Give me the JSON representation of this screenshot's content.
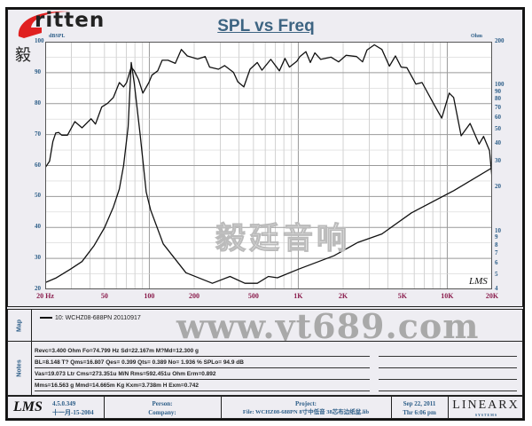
{
  "logo": {
    "word": "ritten",
    "chinese": "毅 廷 音 响"
  },
  "title": "SPL vs Freq",
  "watermarks": {
    "chinese": "毅廷音响",
    "url": "www.yt689.com"
  },
  "lms_mark": "LMS",
  "chart_data": {
    "type": "line",
    "title": "SPL vs Freq",
    "x_scale": "log",
    "xlim": [
      20,
      20000
    ],
    "x_ticks": [
      {
        "value": 20,
        "label": "20  Hz"
      },
      {
        "value": 50,
        "label": "50"
      },
      {
        "value": 100,
        "label": "100"
      },
      {
        "value": 200,
        "label": "200"
      },
      {
        "value": 500,
        "label": "500"
      },
      {
        "value": 1000,
        "label": "1K"
      },
      {
        "value": 2000,
        "label": "2K"
      },
      {
        "value": 5000,
        "label": "5K"
      },
      {
        "value": 10000,
        "label": "10K"
      },
      {
        "value": 20000,
        "label": "20K"
      }
    ],
    "y_left": {
      "unit": "dBSPL",
      "ylim": [
        20,
        100
      ],
      "ticks": [
        20,
        30,
        40,
        50,
        60,
        70,
        80,
        90,
        100
      ]
    },
    "y_right": {
      "unit": "Ohm",
      "scale": "log",
      "ylim": [
        4,
        200
      ],
      "ticks": [
        4,
        5,
        6,
        7,
        8,
        9,
        10,
        20,
        30,
        40,
        50,
        60,
        70,
        80,
        90,
        100,
        200
      ]
    },
    "grid": true,
    "series": [
      {
        "axis": "left",
        "points": [
          [
            20,
            59.3
          ],
          [
            21.4,
            61.4
          ],
          [
            22.5,
            67.7
          ],
          [
            23.5,
            70.5
          ],
          [
            24.6,
            70.7
          ],
          [
            25.8,
            69.8
          ],
          [
            28.2,
            69.8
          ],
          [
            31.6,
            74.2
          ],
          [
            35.3,
            72.2
          ],
          [
            40.6,
            75.1
          ],
          [
            43.5,
            73.4
          ],
          [
            47.9,
            78.9
          ],
          [
            52.4,
            80.1
          ],
          [
            57.4,
            82.0
          ],
          [
            62.9,
            86.8
          ],
          [
            67.2,
            85.4
          ],
          [
            70.4,
            86.8
          ],
          [
            75.6,
            91.8
          ],
          [
            79.2,
            90.6
          ],
          [
            84.6,
            87.8
          ],
          [
            90.5,
            83.4
          ],
          [
            99.3,
            86.8
          ],
          [
            104,
            89.2
          ],
          [
            113.9,
            90.6
          ],
          [
            122,
            94.0
          ],
          [
            133.4,
            94.0
          ],
          [
            149.4,
            93.0
          ],
          [
            164,
            97.5
          ],
          [
            179.8,
            95.4
          ],
          [
            211,
            94.4
          ],
          [
            237,
            95.2
          ],
          [
            254,
            91.8
          ],
          [
            291,
            91.1
          ],
          [
            320,
            92.3
          ],
          [
            367,
            90.1
          ],
          [
            393,
            87.0
          ],
          [
            431,
            85.4
          ],
          [
            474,
            91.1
          ],
          [
            531,
            93.3
          ],
          [
            570,
            90.8
          ],
          [
            654,
            94.3
          ],
          [
            747,
            90.6
          ],
          [
            814,
            94.6
          ],
          [
            872,
            91.8
          ],
          [
            978,
            93.7
          ],
          [
            1024,
            95.2
          ],
          [
            1124,
            96.8
          ],
          [
            1204,
            93.3
          ],
          [
            1292,
            96.4
          ],
          [
            1413,
            94.3
          ],
          [
            1659,
            95.0
          ],
          [
            1864,
            93.5
          ],
          [
            2094,
            95.6
          ],
          [
            2460,
            95.2
          ],
          [
            2700,
            93.5
          ],
          [
            2890,
            97.3
          ],
          [
            3240,
            99.0
          ],
          [
            3640,
            97.5
          ],
          [
            4090,
            92.1
          ],
          [
            4490,
            95.4
          ],
          [
            4900,
            91.8
          ],
          [
            5360,
            91.6
          ],
          [
            6160,
            86.3
          ],
          [
            6770,
            86.8
          ],
          [
            8170,
            79.6
          ],
          [
            9180,
            75.3
          ],
          [
            10300,
            83.4
          ],
          [
            11030,
            82.0
          ],
          [
            12390,
            69.6
          ],
          [
            14230,
            73.6
          ],
          [
            16350,
            66.9
          ],
          [
            17530,
            69.4
          ],
          [
            19230,
            64.8
          ],
          [
            20000,
            55.7
          ]
        ]
      },
      {
        "axis": "right",
        "points": [
          [
            20,
            4.45
          ],
          [
            23.5,
            4.77
          ],
          [
            29.5,
            5.5
          ],
          [
            35.3,
            6.2
          ],
          [
            42.6,
            8.0
          ],
          [
            50,
            10.6
          ],
          [
            57.4,
            14.7
          ],
          [
            62.9,
            19.5
          ],
          [
            67.2,
            28.3
          ],
          [
            72,
            52.0
          ],
          [
            75.6,
            144
          ],
          [
            79.2,
            104
          ],
          [
            86.9,
            45.3
          ],
          [
            95.3,
            18.6
          ],
          [
            102,
            14.0
          ],
          [
            124,
            8.2
          ],
          [
            176,
            5.2
          ],
          [
            265,
            4.4
          ],
          [
            348,
            4.9
          ],
          [
            438,
            4.4
          ],
          [
            531,
            4.4
          ],
          [
            630,
            4.9
          ],
          [
            724,
            4.8
          ],
          [
            1003,
            5.5
          ],
          [
            1734,
            6.8
          ],
          [
            2516,
            8.4
          ],
          [
            3640,
            9.6
          ],
          [
            5750,
            13.4
          ],
          [
            11030,
            19.0
          ],
          [
            20000,
            27.3
          ]
        ]
      }
    ]
  },
  "map": {
    "label": "Map",
    "legend": "10: WCHZ08-688PN 20110917"
  },
  "notes": {
    "label": "Notes",
    "lines": [
      "Revc=3.400 Ohm  Fo=74.799 Hz  Sd=22.167m M?Md=12.300 g",
      "BL=8.148 T?  Qms=16.807  Qes= 0.399  Qts= 0.389  No= 1.936 %  SPLo= 94.9 dB",
      "Vas=19.073 Ltr  Cms=273.351u M/N  Rms=592.451u Ohm  Erm=0.892",
      "Mms=16.563 g  Mmd=14.665m Kg  Kxm=3.738m H  Exm=0.742"
    ]
  },
  "footer": {
    "logo": "LMS",
    "version": "4.5.0.349",
    "version_date": "十一月-15-2004",
    "person_label": "Person:",
    "company_label": "Company:",
    "project_label": "Project:",
    "file": "File: WCHZ08-688PN  8寸中低音 38芯布边纸盆.lib",
    "date": "Sep 22, 2011",
    "time": "Thr  6:06 pm",
    "brand": "LINEARX",
    "brand_sub": "S Y S T E M S"
  }
}
